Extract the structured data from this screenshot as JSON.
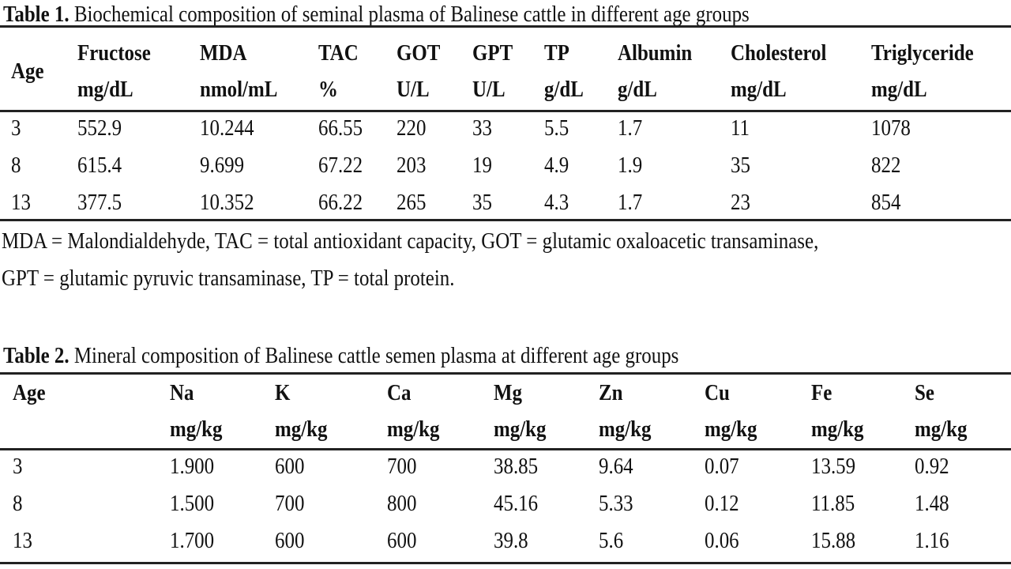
{
  "table1": {
    "label": "Table 1.",
    "caption": " Biochemical composition of seminal plasma of Balinese cattle in different age groups",
    "headers": [
      {
        "name": "Age",
        "unit": ""
      },
      {
        "name": "Fructose",
        "unit": "mg/dL"
      },
      {
        "name": "MDA",
        "unit": "nmol/mL"
      },
      {
        "name": "TAC",
        "unit": "%"
      },
      {
        "name": "GOT",
        "unit": "U/L"
      },
      {
        "name": "GPT",
        "unit": "U/L"
      },
      {
        "name": "TP",
        "unit": "g/dL"
      },
      {
        "name": "Albumin",
        "unit": "g/dL"
      },
      {
        "name": "Cholesterol",
        "unit": "mg/dL"
      },
      {
        "name": "Triglyceride",
        "unit": "mg/dL"
      }
    ],
    "rows": [
      [
        "3",
        "552.9",
        "10.244",
        "66.55",
        "220",
        "33",
        "5.5",
        "1.7",
        "11",
        "1078"
      ],
      [
        "8",
        "615.4",
        "9.699",
        "67.22",
        "203",
        "19",
        "4.9",
        "1.9",
        "35",
        "822"
      ],
      [
        "13",
        "377.5",
        "10.352",
        "66.22",
        "265",
        "35",
        "4.3",
        "1.7",
        "23",
        "854"
      ]
    ],
    "footnote": [
      "MDA = Malondialdehyde, TAC = total antioxidant capacity, GOT = glutamic oxaloacetic transaminase,",
      "GPT = glutamic pyruvic transaminase, TP = total protein."
    ]
  },
  "table2": {
    "label": "Table 2.",
    "caption": " Mineral composition of Balinese cattle semen plasma at different age groups",
    "headers": [
      {
        "name": "Age",
        "unit": ""
      },
      {
        "name": "Na",
        "unit": "mg/kg"
      },
      {
        "name": "K",
        "unit": "mg/kg"
      },
      {
        "name": "Ca",
        "unit": "mg/kg"
      },
      {
        "name": "Mg",
        "unit": "mg/kg"
      },
      {
        "name": "Zn",
        "unit": "mg/kg"
      },
      {
        "name": "Cu",
        "unit": "mg/kg"
      },
      {
        "name": "Fe",
        "unit": "mg/kg"
      },
      {
        "name": "Se",
        "unit": "mg/kg"
      }
    ],
    "rows": [
      [
        "3",
        "1.900",
        "600",
        "700",
        "38.85",
        "9.64",
        "0.07",
        "13.59",
        "0.92"
      ],
      [
        "8",
        "1.500",
        "700",
        "800",
        "45.16",
        "5.33",
        "0.12",
        "11.85",
        "1.48"
      ],
      [
        "13",
        "1.700",
        "600",
        "600",
        "39.8",
        "5.6",
        "0.06",
        "15.88",
        "1.16"
      ]
    ]
  }
}
